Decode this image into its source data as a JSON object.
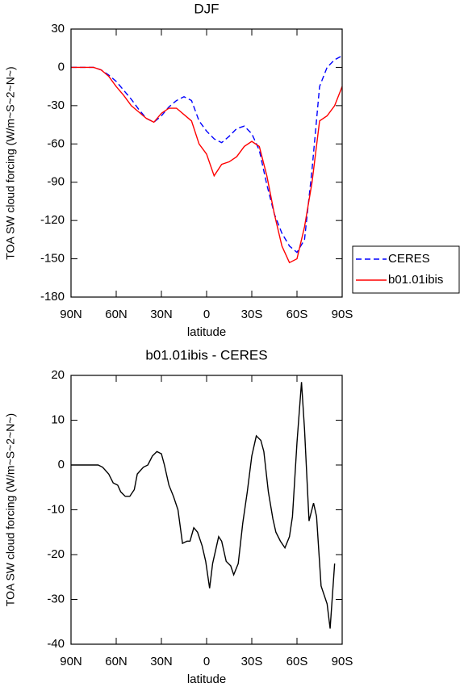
{
  "chart_data": [
    {
      "type": "line",
      "title": "DJF",
      "x_label": "latitude",
      "y_label": "TOA SW cloud forcing (W/m~S~2~N~)",
      "x": [
        90,
        85,
        80,
        75,
        70,
        65,
        60,
        55,
        50,
        45,
        40,
        35,
        30,
        25,
        20,
        15,
        10,
        5,
        0,
        -5,
        -10,
        -15,
        -20,
        -25,
        -30,
        -35,
        -40,
        -45,
        -50,
        -55,
        -60,
        -65,
        -70,
        -75,
        -80,
        -85,
        -90
      ],
      "series": [
        {
          "name": "CERES",
          "color": "#0000ff",
          "linestyle": "dashed",
          "values": [
            0,
            0,
            0,
            0,
            -2,
            -6,
            -11,
            -18,
            -25,
            -33,
            -40,
            -43,
            -38,
            -31,
            -26,
            -23,
            -26,
            -42,
            -50,
            -56,
            -59,
            -54,
            -48,
            -46,
            -52,
            -65,
            -92,
            -115,
            -130,
            -140,
            -145,
            -135,
            -80,
            -15,
            0,
            6,
            9
          ]
        },
        {
          "name": "b01.01ibis",
          "color": "#ff0000",
          "linestyle": "solid",
          "values": [
            0,
            0,
            0,
            0,
            -2,
            -7,
            -15,
            -22,
            -30,
            -35,
            -40,
            -43,
            -36,
            -32,
            -32,
            -37,
            -42,
            -60,
            -68,
            -85,
            -76,
            -74,
            -70,
            -62,
            -58,
            -62,
            -85,
            -115,
            -140,
            -153,
            -150,
            -125,
            -90,
            -42,
            -38,
            -30,
            -15
          ]
        }
      ],
      "xlim": [
        90,
        -90
      ],
      "xticks": [
        {
          "value": 90,
          "label": "90N"
        },
        {
          "value": 60,
          "label": "60N"
        },
        {
          "value": 30,
          "label": "30N"
        },
        0,
        {
          "value": -30,
          "label": "30S"
        },
        {
          "value": -60,
          "label": "60S"
        },
        {
          "value": -90,
          "label": "90S"
        }
      ],
      "ylim": [
        30,
        -180
      ],
      "yticks": [
        30,
        0,
        -30,
        -60,
        -90,
        -120,
        -150,
        -180
      ],
      "legend": "right"
    },
    {
      "type": "line",
      "title": "b01.01ibis - CERES",
      "x_label": "latitude",
      "y_label": "TOA SW cloud forcing (W/m~S~2~N~)",
      "x": [
        90,
        80,
        72,
        69,
        65,
        62,
        59,
        57,
        54,
        51,
        48,
        46,
        42,
        39,
        36,
        33,
        30,
        28,
        25,
        22,
        19,
        16,
        13,
        11,
        8.5,
        6,
        3,
        0.6,
        -2,
        -4,
        -8,
        -10,
        -13,
        -16,
        -18,
        -21,
        -24,
        -27,
        -30,
        -33,
        -36,
        -38,
        -41,
        -44,
        -46,
        -49,
        -52,
        -55,
        -57,
        -60,
        -63,
        -65,
        -68,
        -71,
        -73,
        -76,
        -80,
        -82,
        -85
      ],
      "series": [
        {
          "name": "b01.01ibis - CERES",
          "color": "#000000",
          "linestyle": "solid",
          "values": [
            0,
            0,
            0,
            -0.5,
            -2,
            -4,
            -4.5,
            -6,
            -7,
            -7,
            -5.5,
            -2,
            -0.5,
            0,
            2,
            3,
            2.5,
            0,
            -4.5,
            -7,
            -10,
            -17.5,
            -17,
            -17,
            -14,
            -15,
            -18,
            -21.5,
            -27.5,
            -22,
            -16,
            -17,
            -21.5,
            -22.5,
            -24.5,
            -22,
            -13,
            -6,
            2,
            6.5,
            5.5,
            3,
            -6,
            -12,
            -15,
            -17,
            -18.5,
            -16,
            -11.5,
            5,
            18.5,
            8,
            -12.5,
            -8.5,
            -11.5,
            -27,
            -31,
            -36.5,
            -22
          ]
        }
      ],
      "xlim": [
        90,
        -90
      ],
      "xticks": [
        {
          "value": 90,
          "label": "90N"
        },
        {
          "value": 60,
          "label": "60N"
        },
        {
          "value": 30,
          "label": "30N"
        },
        0,
        {
          "value": -30,
          "label": "30S"
        },
        {
          "value": -60,
          "label": "60S"
        },
        {
          "value": -90,
          "label": "90S"
        }
      ],
      "ylim": [
        20,
        -40
      ],
      "yticks": [
        20,
        10,
        0,
        -10,
        -20,
        -30,
        -40
      ]
    }
  ]
}
